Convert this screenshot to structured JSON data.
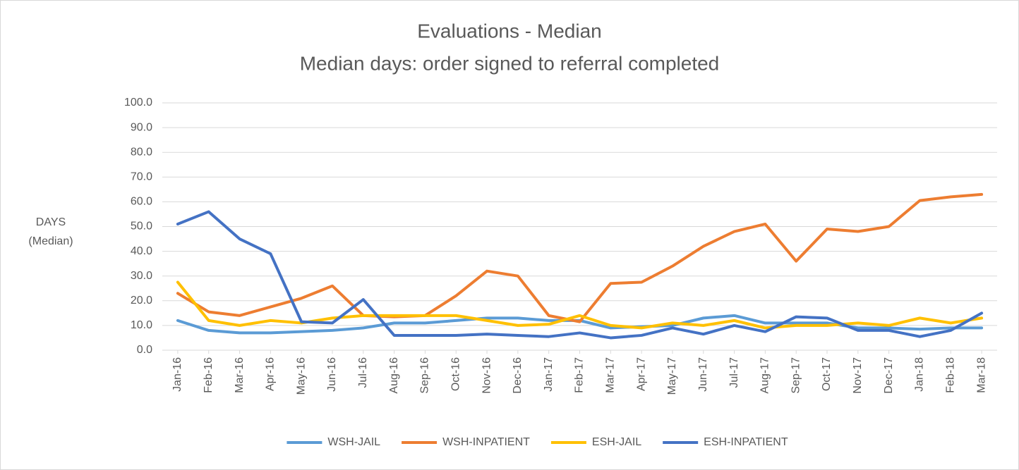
{
  "chart_data": {
    "type": "line",
    "title": "Evaluations - Median",
    "subtitle": "Median days: order signed to referral completed",
    "ylabel_lines": [
      "DAYS",
      "(Median)"
    ],
    "categories": [
      "Jan-16",
      "Feb-16",
      "Mar-16",
      "Apr-16",
      "May-16",
      "Jun-16",
      "Jul-16",
      "Aug-16",
      "Sep-16",
      "Oct-16",
      "Nov-16",
      "Dec-16",
      "Jan-17",
      "Feb-17",
      "Mar-17",
      "Apr-17",
      "May-17",
      "Jun-17",
      "Jul-17",
      "Aug-17",
      "Sep-17",
      "Oct-17",
      "Nov-17",
      "Dec-17",
      "Jan-18",
      "Feb-18",
      "Mar-18"
    ],
    "series": [
      {
        "name": "WSH-JAIL",
        "color": "#5b9bd5",
        "values": [
          12,
          8,
          7,
          7,
          7.5,
          8,
          9,
          11,
          11,
          12,
          13,
          13,
          12,
          12,
          9,
          9.5,
          10,
          13,
          14,
          11,
          11,
          11,
          9,
          9,
          8.5,
          9,
          9
        ]
      },
      {
        "name": "WSH-INPATIENT",
        "color": "#ed7d31",
        "values": [
          23,
          15.5,
          14,
          17.5,
          21,
          26,
          14,
          13.5,
          14,
          22,
          32,
          30,
          14,
          11.5,
          27,
          27.5,
          34,
          42,
          48,
          51,
          36,
          49,
          48,
          50,
          60.5,
          62,
          63
        ]
      },
      {
        "name": "ESH-JAIL",
        "color": "#ffc000",
        "values": [
          27.5,
          12,
          10,
          12,
          11,
          13,
          14,
          14,
          14,
          14,
          12,
          10,
          10.5,
          14,
          10,
          9,
          11,
          10,
          12,
          9,
          10,
          10,
          11,
          10,
          13,
          11,
          13
        ]
      },
      {
        "name": "ESH-INPATIENT",
        "color": "#4472c4",
        "values": [
          51,
          56,
          45,
          39,
          11.5,
          11,
          20.5,
          6,
          6,
          6,
          6.5,
          6,
          5.5,
          7,
          5,
          6,
          9,
          6.5,
          10,
          7.5,
          13.5,
          13,
          8,
          8,
          5.5,
          8,
          15
        ]
      }
    ],
    "ylim": [
      0,
      100
    ],
    "yticks": [
      {
        "value": 0,
        "label": "0.0"
      },
      {
        "value": 10,
        "label": "10.0"
      },
      {
        "value": 20,
        "label": "20.0"
      },
      {
        "value": 30,
        "label": "30.0"
      },
      {
        "value": 40,
        "label": "40.0"
      },
      {
        "value": 50,
        "label": "50.0"
      },
      {
        "value": 60,
        "label": "60.0"
      },
      {
        "value": 70,
        "label": "70.0"
      },
      {
        "value": 80,
        "label": "80.0"
      },
      {
        "value": 90,
        "label": "90.0"
      },
      {
        "value": 100,
        "label": "100.0"
      }
    ],
    "grid": true,
    "legend": "bottom"
  }
}
